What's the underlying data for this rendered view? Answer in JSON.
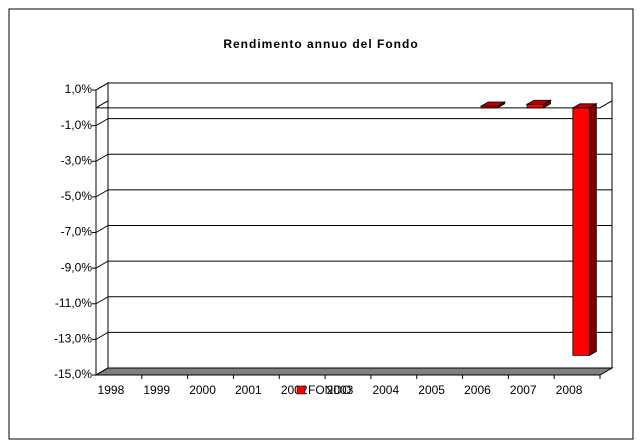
{
  "chart_data": {
    "type": "bar3d",
    "title": "Rendimento annuo del Fondo",
    "categories": [
      "1998",
      "1999",
      "2000",
      "2001",
      "2002",
      "2003",
      "2004",
      "2005",
      "2006",
      "2007",
      "2008"
    ],
    "series": [
      {
        "name": "FONDO",
        "color": "#ff0000",
        "values": [
          null,
          null,
          null,
          null,
          null,
          null,
          null,
          null,
          0.1,
          0.2,
          -13.9
        ]
      }
    ],
    "ylim": [
      -15,
      1
    ],
    "yticks": [
      {
        "value": 1,
        "label": "1,0%"
      },
      {
        "value": -1,
        "label": "-1,0%"
      },
      {
        "value": -3,
        "label": "-3,0%"
      },
      {
        "value": -5,
        "label": "-5,0%"
      },
      {
        "value": -7,
        "label": "-7,0%"
      },
      {
        "value": -9,
        "label": "-9,0%"
      },
      {
        "value": -11,
        "label": "-11,0%"
      },
      {
        "value": -13,
        "label": "-13,0%"
      },
      {
        "value": -15,
        "label": "-15,0%"
      }
    ],
    "grid": true,
    "legend": "bottom"
  }
}
